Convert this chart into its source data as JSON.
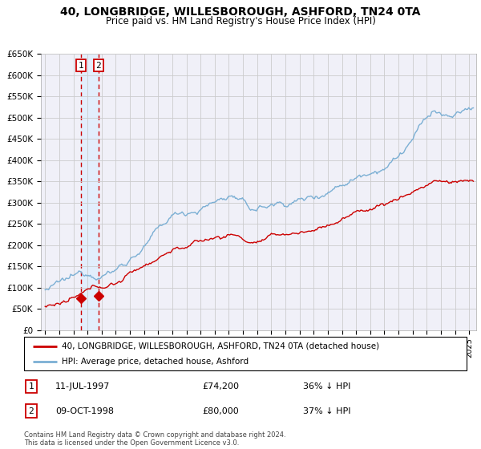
{
  "title": "40, LONGBRIDGE, WILLESBOROUGH, ASHFORD, TN24 0TA",
  "subtitle": "Price paid vs. HM Land Registry's House Price Index (HPI)",
  "legend_line1": "40, LONGBRIDGE, WILLESBOROUGH, ASHFORD, TN24 0TA (detached house)",
  "legend_line2": "HPI: Average price, detached house, Ashford",
  "sale1_label": "1",
  "sale1_date": "11-JUL-1997",
  "sale1_price": "£74,200",
  "sale1_hpi": "36% ↓ HPI",
  "sale1_x": 1997.53,
  "sale1_y": 74200,
  "sale2_label": "2",
  "sale2_date": "09-OCT-1998",
  "sale2_price": "£80,000",
  "sale2_hpi": "37% ↓ HPI",
  "sale2_x": 1998.78,
  "sale2_y": 80000,
  "price_color": "#cc0000",
  "hpi_color": "#7bafd4",
  "background_color": "#ffffff",
  "plot_bg_color": "#f0f0f8",
  "grid_color": "#cccccc",
  "annotation_color": "#cc0000",
  "xmin": 1994.7,
  "xmax": 2025.5,
  "ymin": 0,
  "ymax": 650000,
  "yticks": [
    0,
    50000,
    100000,
    150000,
    200000,
    250000,
    300000,
    350000,
    400000,
    450000,
    500000,
    550000,
    600000,
    650000
  ],
  "footer": "Contains HM Land Registry data © Crown copyright and database right 2024.\nThis data is licensed under the Open Government Licence v3.0."
}
